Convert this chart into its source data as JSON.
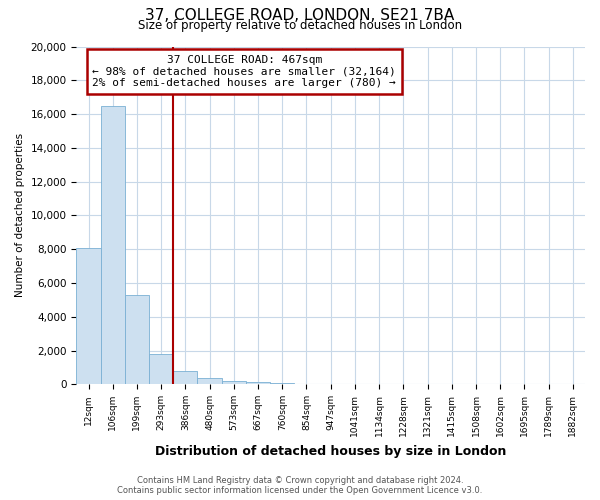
{
  "title": "37, COLLEGE ROAD, LONDON, SE21 7BA",
  "subtitle": "Size of property relative to detached houses in London",
  "xlabel": "Distribution of detached houses by size in London",
  "ylabel": "Number of detached properties",
  "bar_color": "#cde0f0",
  "bar_edge_color": "#7ab0d4",
  "vline_color": "#aa0000",
  "vline_x_index": 4,
  "annotation_line1": "37 COLLEGE ROAD: 467sqm",
  "annotation_line2": "← 98% of detached houses are smaller (32,164)",
  "annotation_line3": "2% of semi-detached houses are larger (780) →",
  "annotation_box_color": "white",
  "annotation_box_edge": "#aa0000",
  "categories": [
    "12sqm",
    "106sqm",
    "199sqm",
    "293sqm",
    "386sqm",
    "480sqm",
    "573sqm",
    "667sqm",
    "760sqm",
    "854sqm",
    "947sqm",
    "1041sqm",
    "1134sqm",
    "1228sqm",
    "1321sqm",
    "1415sqm",
    "1508sqm",
    "1602sqm",
    "1695sqm",
    "1789sqm",
    "1882sqm"
  ],
  "values": [
    8100,
    16500,
    5300,
    1800,
    800,
    350,
    200,
    150,
    100,
    0,
    0,
    0,
    0,
    0,
    0,
    0,
    0,
    0,
    0,
    0,
    0
  ],
  "ylim": [
    0,
    20000
  ],
  "yticks": [
    0,
    2000,
    4000,
    6000,
    8000,
    10000,
    12000,
    14000,
    16000,
    18000,
    20000
  ],
  "footer_line1": "Contains HM Land Registry data © Crown copyright and database right 2024.",
  "footer_line2": "Contains public sector information licensed under the Open Government Licence v3.0.",
  "background_color": "#ffffff",
  "grid_color": "#c8d8e8"
}
